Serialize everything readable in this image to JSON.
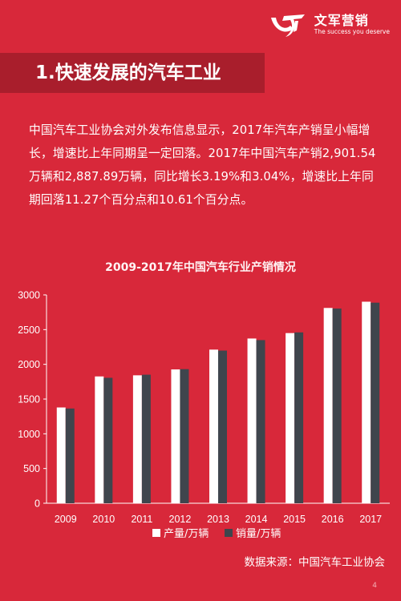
{
  "logo": {
    "name": "文军营销",
    "slogan": "The success you deserve"
  },
  "title": "1.快速发展的汽车工业",
  "body": "中国汽车工业协会对外发布信息显示，2017年汽车产销呈小幅增长，增速比上年同期呈一定回落。2017年中国汽车产销2,901.54万辆和2,887.89万辆，同比增长3.19%和3.04%，增速比上年同期回落11.27个百分点和10.61个百分点。",
  "source": "数据来源：中国汽车工业协会",
  "page_number": "4",
  "colors": {
    "background": "#d8283a",
    "title_band": "#a91e2c",
    "production_bar": "#ffffff",
    "sales_bar": "#3f454d"
  },
  "chart_data": {
    "type": "bar",
    "title": "2009-2017年中国汽车行业产销情况",
    "xlabel": "",
    "ylabel": "",
    "categories": [
      "2009",
      "2010",
      "2011",
      "2012",
      "2013",
      "2014",
      "2015",
      "2016",
      "2017"
    ],
    "series": [
      {
        "name": "产量/万辆",
        "values": [
          1379,
          1826,
          1842,
          1927,
          2212,
          2372,
          2450,
          2812,
          2902
        ]
      },
      {
        "name": "销量/万辆",
        "values": [
          1364,
          1806,
          1851,
          1931,
          2198,
          2349,
          2460,
          2803,
          2888
        ]
      }
    ],
    "ylim": [
      0,
      3000
    ],
    "yticks": [
      "0",
      "500",
      "1000",
      "1500",
      "2000",
      "2500",
      "3000"
    ],
    "grid": false,
    "legend": "bottom"
  }
}
